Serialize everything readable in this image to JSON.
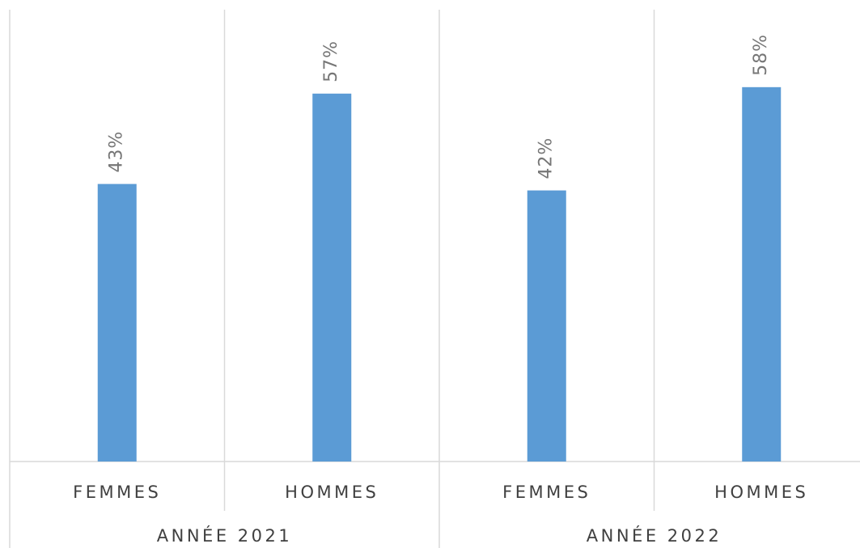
{
  "chart_data": {
    "type": "bar",
    "categories": [
      "FEMMES",
      "HOMMES",
      "FEMMES",
      "HOMMES"
    ],
    "groups": [
      "ANNÉE 2021",
      "ANNÉE 2022"
    ],
    "values": [
      43,
      57,
      42,
      58
    ],
    "value_labels": [
      "43%",
      "57%",
      "42%",
      "58%"
    ],
    "color": "#5b9bd5",
    "ylim": [
      0,
      70
    ]
  }
}
